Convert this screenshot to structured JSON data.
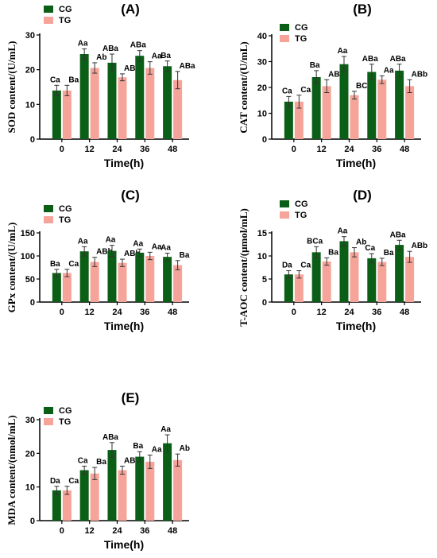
{
  "colors": {
    "CG": "#0b5e16",
    "TG": "#f6a49a"
  },
  "chart_data": [
    {
      "type": "bar",
      "title": "(A)",
      "xlabel": "Time(h)",
      "ylabel": "SOD content/(U/mL)",
      "categories": [
        "0",
        "12",
        "24",
        "36",
        "48"
      ],
      "ylim": [
        0,
        30
      ],
      "yticks": [
        0,
        10,
        20,
        30
      ],
      "series": [
        {
          "name": "CG",
          "values": [
            14,
            24.5,
            22,
            24,
            21
          ],
          "errors": [
            1.5,
            1.5,
            2.5,
            1.5,
            1.5
          ]
        },
        {
          "name": "TG",
          "values": [
            14,
            20.5,
            17.8,
            20.5,
            17
          ],
          "errors": [
            1.5,
            1.5,
            1,
            1.8,
            2.5
          ]
        }
      ],
      "labels": [
        [
          "Ca",
          "Aa",
          "ABa",
          "ABa",
          "Ba"
        ],
        [
          "Ba",
          "Ab",
          "ABb",
          "Aa",
          "ABa"
        ]
      ],
      "legend": "top-left"
    },
    {
      "type": "bar",
      "title": "(B)",
      "xlabel": "Time(h)",
      "ylabel": "CAT content/(U/mL)",
      "categories": [
        "0",
        "12",
        "24",
        "36",
        "48"
      ],
      "ylim": [
        0,
        40
      ],
      "yticks": [
        0,
        10,
        20,
        30,
        40
      ],
      "series": [
        {
          "name": "CG",
          "values": [
            14.5,
            24,
            29,
            26,
            26.5
          ],
          "errors": [
            2,
            2.5,
            3,
            3,
            2.5
          ]
        },
        {
          "name": "TG",
          "values": [
            14.5,
            20.5,
            17,
            23,
            20.5
          ],
          "errors": [
            2.5,
            2.5,
            1.5,
            1.5,
            2.5
          ]
        }
      ],
      "labels": [
        [
          "Ca",
          "Ba",
          "Aa",
          "ABa",
          "ABa"
        ],
        [
          "Ca",
          "ABa",
          "BCb",
          "Aa",
          "ABb"
        ]
      ],
      "legend": "top-left"
    },
    {
      "type": "bar",
      "title": "(C)",
      "xlabel": "Time(h)",
      "ylabel": "GPx content/(U/mL)",
      "categories": [
        "0",
        "12",
        "24",
        "36",
        "48"
      ],
      "ylim": [
        0,
        150
      ],
      "yticks": [
        0,
        50,
        100,
        150
      ],
      "series": [
        {
          "name": "CG",
          "values": [
            63,
            110,
            111,
            107,
            98
          ],
          "errors": [
            8,
            10,
            12,
            8,
            8
          ]
        },
        {
          "name": "TG",
          "values": [
            63,
            87,
            85,
            100,
            80
          ],
          "errors": [
            8,
            10,
            8,
            8,
            10
          ]
        }
      ],
      "labels": [
        [
          "Ba",
          "Aa",
          "Aa",
          "Aa",
          "Aa"
        ],
        [
          "Ca",
          "ABb",
          "ABb",
          "Aa",
          "Ba"
        ]
      ],
      "legend": "top-left"
    },
    {
      "type": "bar",
      "title": "(D)",
      "xlabel": "Time(h)",
      "ylabel": "T-AOC content/(μmol/mL)",
      "categories": [
        "0",
        "12",
        "24",
        "36",
        "48"
      ],
      "ylim": [
        0,
        15
      ],
      "yticks": [
        0,
        5,
        10,
        15
      ],
      "series": [
        {
          "name": "CG",
          "values": [
            6,
            10.8,
            13.2,
            9.5,
            12.4
          ],
          "errors": [
            0.8,
            1.2,
            1,
            1,
            1
          ]
        },
        {
          "name": "TG",
          "values": [
            6,
            8.8,
            10.8,
            8.7,
            9.8
          ],
          "errors": [
            0.8,
            0.8,
            1,
            0.8,
            1.2
          ]
        }
      ],
      "labels": [
        [
          "Da",
          "BCa",
          "Aa",
          "Ca",
          "ABa"
        ],
        [
          "Ca",
          "Ba",
          "Ab",
          "Ba",
          "ABb"
        ]
      ],
      "legend": "top-left"
    },
    {
      "type": "bar",
      "title": "(E)",
      "xlabel": "Time(h)",
      "ylabel": "MDA content/(nmol/mL)",
      "categories": [
        "0",
        "12",
        "24",
        "36",
        "48"
      ],
      "ylim": [
        0,
        30
      ],
      "yticks": [
        0,
        10,
        20,
        30
      ],
      "series": [
        {
          "name": "CG",
          "values": [
            9,
            15,
            21,
            19,
            23
          ],
          "errors": [
            1.2,
            1.2,
            2.2,
            1.5,
            2.5
          ]
        },
        {
          "name": "TG",
          "values": [
            9,
            14,
            15,
            17.5,
            18
          ],
          "errors": [
            1.2,
            1.8,
            1.2,
            2,
            1.8
          ]
        }
      ],
      "labels": [
        [
          "Da",
          "Ca",
          "ABa",
          "Ba",
          "Aa"
        ],
        [
          "Ca",
          "Ba",
          "ABb",
          "Aa",
          "Ab"
        ]
      ],
      "legend": "top-left"
    }
  ]
}
